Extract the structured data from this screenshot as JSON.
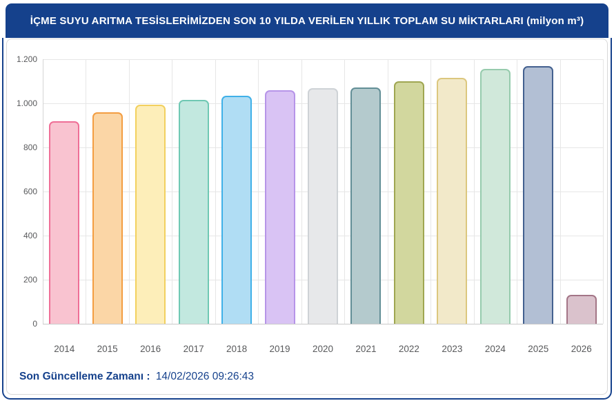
{
  "header": {
    "title": "İÇME SUYU ARITMA TESİSLERİMİZDEN SON 10 YILDA VERİLEN YILLIK TOPLAM SU MİKTARLARI (milyon m³)"
  },
  "chart_data": {
    "type": "bar",
    "title": "İÇME SUYU ARITMA TESİSLERİMİZDEN SON 10 YILDA VERİLEN YILLIK TOPLAM SU MİKTARLARI",
    "unit": "milyon m³",
    "categories": [
      "2014",
      "2015",
      "2016",
      "2017",
      "2018",
      "2019",
      "2020",
      "2021",
      "2022",
      "2023",
      "2024",
      "2025",
      "2026"
    ],
    "values": [
      920,
      960,
      995,
      1015,
      1035,
      1060,
      1070,
      1072,
      1100,
      1115,
      1157,
      1170,
      130
    ],
    "xlabel": "",
    "ylabel": "",
    "ylim": [
      0,
      1200
    ],
    "ytick_step": 200,
    "ytick_labels": [
      "0",
      "200",
      "400",
      "600",
      "800",
      "1.000",
      "1.200"
    ],
    "grid": true,
    "legend_position": "none",
    "bar_colors": [
      {
        "fill": "#f9c3d0",
        "stroke": "#ef6e96"
      },
      {
        "fill": "#fbd6a6",
        "stroke": "#f39d41"
      },
      {
        "fill": "#fdeeb9",
        "stroke": "#f2d05e"
      },
      {
        "fill": "#c2e8df",
        "stroke": "#6fc8b3"
      },
      {
        "fill": "#b0ddf4",
        "stroke": "#3fb0e8"
      },
      {
        "fill": "#d9c3f4",
        "stroke": "#b694e8"
      },
      {
        "fill": "#e7e8ea",
        "stroke": "#ced2d6"
      },
      {
        "fill": "#b4cacd",
        "stroke": "#628e96"
      },
      {
        "fill": "#d2d79e",
        "stroke": "#9fa651"
      },
      {
        "fill": "#f2e9c9",
        "stroke": "#dcc77e"
      },
      {
        "fill": "#d0e8da",
        "stroke": "#96cbad"
      },
      {
        "fill": "#b2bfd4",
        "stroke": "#43608f"
      },
      {
        "fill": "#dac2cc",
        "stroke": "#a37586"
      }
    ]
  },
  "footer": {
    "label": "Son Güncelleme Zamanı :",
    "value": "14/02/2026 09:26:43"
  },
  "colors": {
    "navy": "#15418c",
    "panel_border": "#d8d8d8",
    "gridline": "#e6e6e6",
    "axis_line": "#c9c9c9",
    "tick_text": "#58595b"
  }
}
